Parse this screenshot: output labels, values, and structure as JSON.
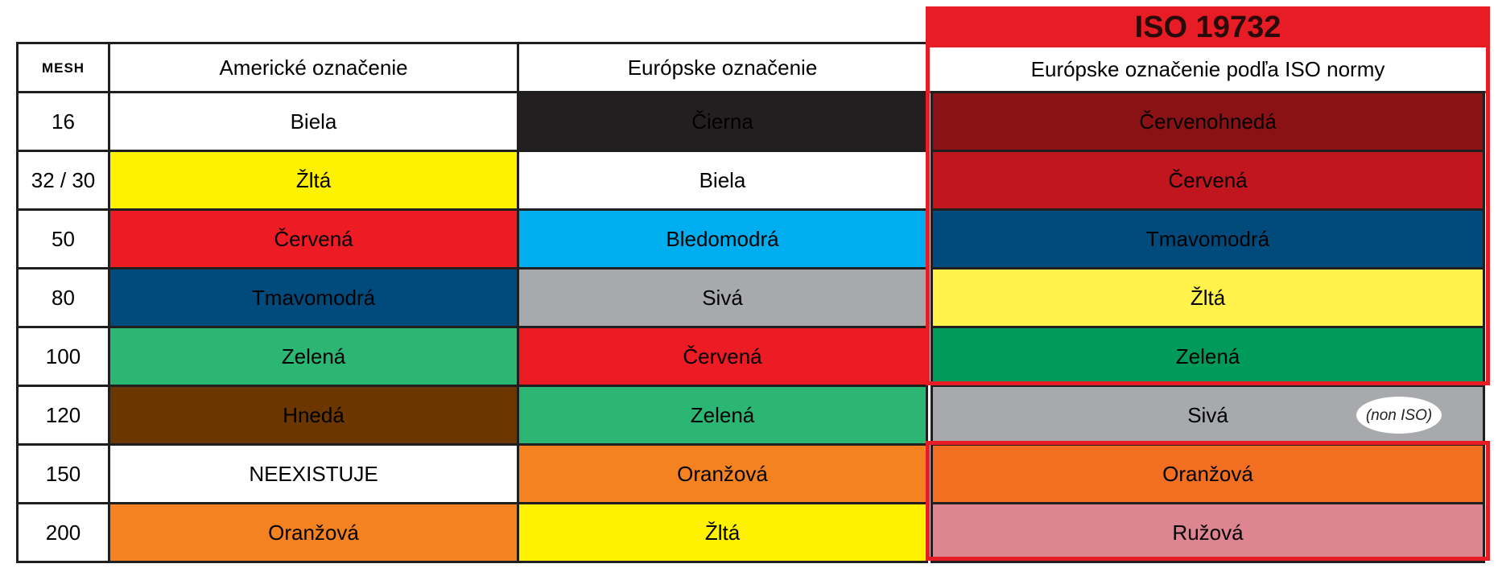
{
  "iso_title": "ISO 19732",
  "headers": {
    "mesh": "MESH",
    "american": "Americké označenie",
    "european": "Európske označenie",
    "iso": "Európske označenie podľa ISO normy"
  },
  "rows": [
    {
      "mesh": "16",
      "american": {
        "text": "Biela",
        "color": "#ffffff"
      },
      "european": {
        "text": "Čierna",
        "color": "#231f20"
      },
      "iso": {
        "text": "Červenohnedá",
        "color": "#8a1214"
      }
    },
    {
      "mesh": "32 / 30",
      "american": {
        "text": "Žltá",
        "color": "#fff200"
      },
      "european": {
        "text": "Biela",
        "color": "#ffffff"
      },
      "iso": {
        "text": "Červená",
        "color": "#c1161e"
      }
    },
    {
      "mesh": "50",
      "american": {
        "text": "Červená",
        "color": "#ed1c24"
      },
      "european": {
        "text": "Bledomodrá",
        "color": "#00aeef"
      },
      "iso": {
        "text": "Tmavomodrá",
        "color": "#004b7c"
      }
    },
    {
      "mesh": "80",
      "american": {
        "text": "Tmavomodrá",
        "color": "#004a7c"
      },
      "european": {
        "text": "Sivá",
        "color": "#a7a9ac"
      },
      "iso": {
        "text": "Žltá",
        "color": "#fff24a"
      }
    },
    {
      "mesh": "100",
      "american": {
        "text": "Zelená",
        "color": "#2bb673"
      },
      "european": {
        "text": "Červená",
        "color": "#ed1c24"
      },
      "iso": {
        "text": "Zelená",
        "color": "#009a5b"
      }
    },
    {
      "mesh": "120",
      "american": {
        "text": "Hnedá",
        "color": "#6b3600"
      },
      "european": {
        "text": "Zelená",
        "color": "#2bb673"
      },
      "iso": {
        "text": "Sivá",
        "color": "#a7a9ac",
        "note": "(non ISO)"
      }
    },
    {
      "mesh": "150",
      "american": {
        "text": "NEEXISTUJE",
        "color": "#ffffff"
      },
      "european": {
        "text": "Oranžová",
        "color": "#f58220"
      },
      "iso": {
        "text": "Oranžová",
        "color": "#f26f21"
      }
    },
    {
      "mesh": "200",
      "american": {
        "text": "Oranžová",
        "color": "#f58220"
      },
      "european": {
        "text": "Žltá",
        "color": "#fff200"
      },
      "iso": {
        "text": "Ružová",
        "color": "#dd8590"
      }
    }
  ],
  "colors": {
    "frame_red": "#e81c24",
    "grid": "#1f1f1f"
  }
}
